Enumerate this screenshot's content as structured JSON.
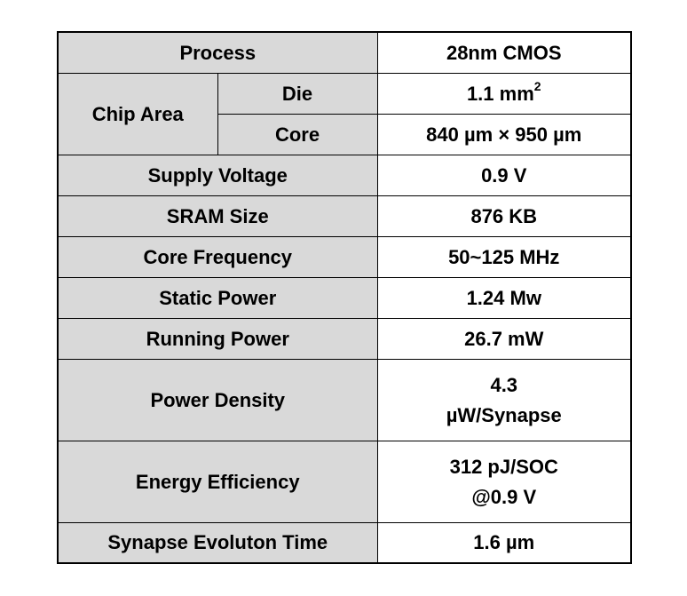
{
  "table": {
    "process": {
      "label": "Process",
      "value": "28nm CMOS"
    },
    "chip_area": {
      "label": "Chip Area",
      "die": {
        "label": "Die",
        "value": "1.1 mm",
        "superscript": "2"
      },
      "core": {
        "label": "Core",
        "value": "840 µm × 950 µm"
      }
    },
    "supply_voltage": {
      "label": "Supply Voltage",
      "value": "0.9 V"
    },
    "sram_size": {
      "label": "SRAM Size",
      "value": "876 KB"
    },
    "core_frequency": {
      "label": "Core Frequency",
      "value": "50~125 MHz"
    },
    "static_power": {
      "label": "Static Power",
      "value": "1.24 Mw"
    },
    "running_power": {
      "label": "Running Power",
      "value": "26.7 mW"
    },
    "power_density": {
      "label": "Power Density",
      "value_line1": "4.3",
      "value_line2": "µW/Synapse"
    },
    "energy_efficiency": {
      "label": "Energy Efficiency",
      "value_line1": "312 pJ/SOC",
      "value_line2": "@0.9 V"
    },
    "synapse_evolution_time": {
      "label": "Synapse Evoluton Time",
      "value": "1.6 µm"
    }
  },
  "colors": {
    "label_background": "#d9d9d9",
    "value_background": "#ffffff",
    "border": "#000000"
  }
}
